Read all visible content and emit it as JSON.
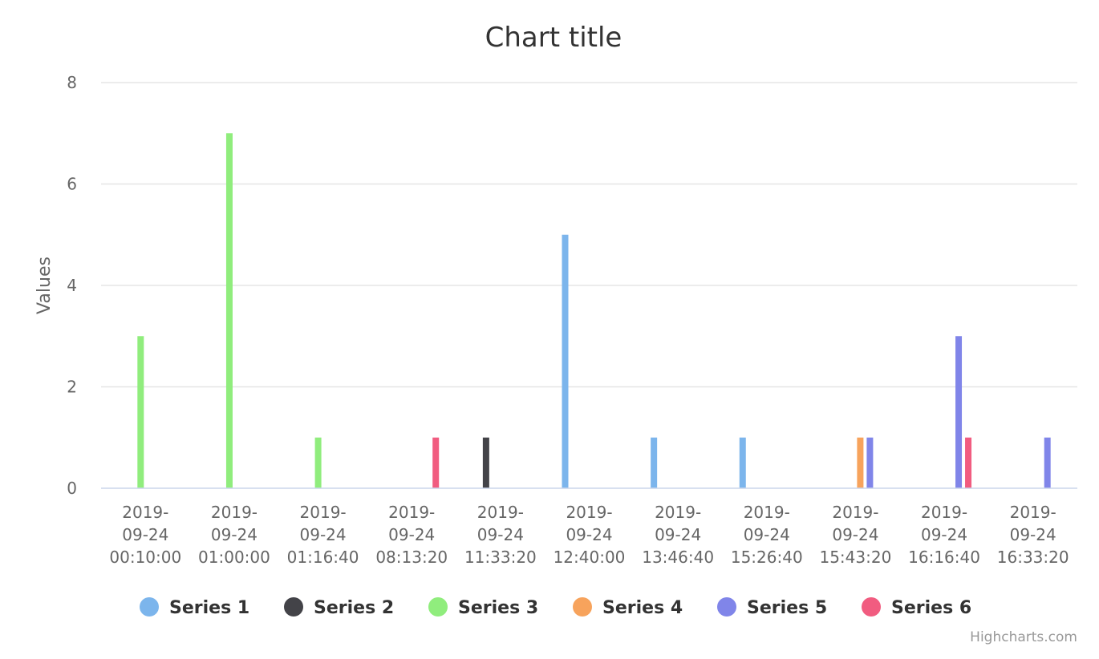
{
  "chart_data": {
    "type": "bar",
    "title": "Chart title",
    "ylabel": "Values",
    "xlabel": "",
    "ylim": [
      0,
      8
    ],
    "yticks": [
      0,
      2,
      4,
      6,
      8
    ],
    "grid": true,
    "legend_position": "bottom",
    "categories": [
      [
        "2019-",
        "09-24",
        "00:10:00"
      ],
      [
        "2019-",
        "09-24",
        "01:00:00"
      ],
      [
        "2019-",
        "09-24",
        "01:16:40"
      ],
      [
        "2019-",
        "09-24",
        "08:13:20"
      ],
      [
        "2019-",
        "09-24",
        "11:33:20"
      ],
      [
        "2019-",
        "09-24",
        "12:40:00"
      ],
      [
        "2019-",
        "09-24",
        "13:46:40"
      ],
      [
        "2019-",
        "09-24",
        "15:26:40"
      ],
      [
        "2019-",
        "09-24",
        "15:43:20"
      ],
      [
        "2019-",
        "09-24",
        "16:16:40"
      ],
      [
        "2019-",
        "09-24",
        "16:33:20"
      ]
    ],
    "series": [
      {
        "name": "Series 1",
        "color": "#7cb5ec",
        "values": [
          null,
          null,
          null,
          null,
          null,
          5,
          1,
          1,
          null,
          null,
          null
        ]
      },
      {
        "name": "Series 2",
        "color": "#434348",
        "values": [
          null,
          null,
          null,
          null,
          1,
          null,
          null,
          null,
          null,
          null,
          null
        ]
      },
      {
        "name": "Series 3",
        "color": "#90ed7d",
        "values": [
          3,
          7,
          1,
          null,
          null,
          null,
          null,
          null,
          null,
          null,
          null
        ]
      },
      {
        "name": "Series 4",
        "color": "#f7a35c",
        "values": [
          null,
          null,
          null,
          null,
          null,
          null,
          null,
          null,
          1,
          null,
          null
        ]
      },
      {
        "name": "Series 5",
        "color": "#8085e9",
        "values": [
          null,
          null,
          null,
          null,
          null,
          null,
          null,
          null,
          1,
          3,
          1
        ]
      },
      {
        "name": "Series 6",
        "color": "#f15c80",
        "values": [
          null,
          null,
          null,
          1,
          null,
          null,
          null,
          null,
          null,
          1,
          null
        ]
      }
    ]
  },
  "credits": "Highcharts.com"
}
